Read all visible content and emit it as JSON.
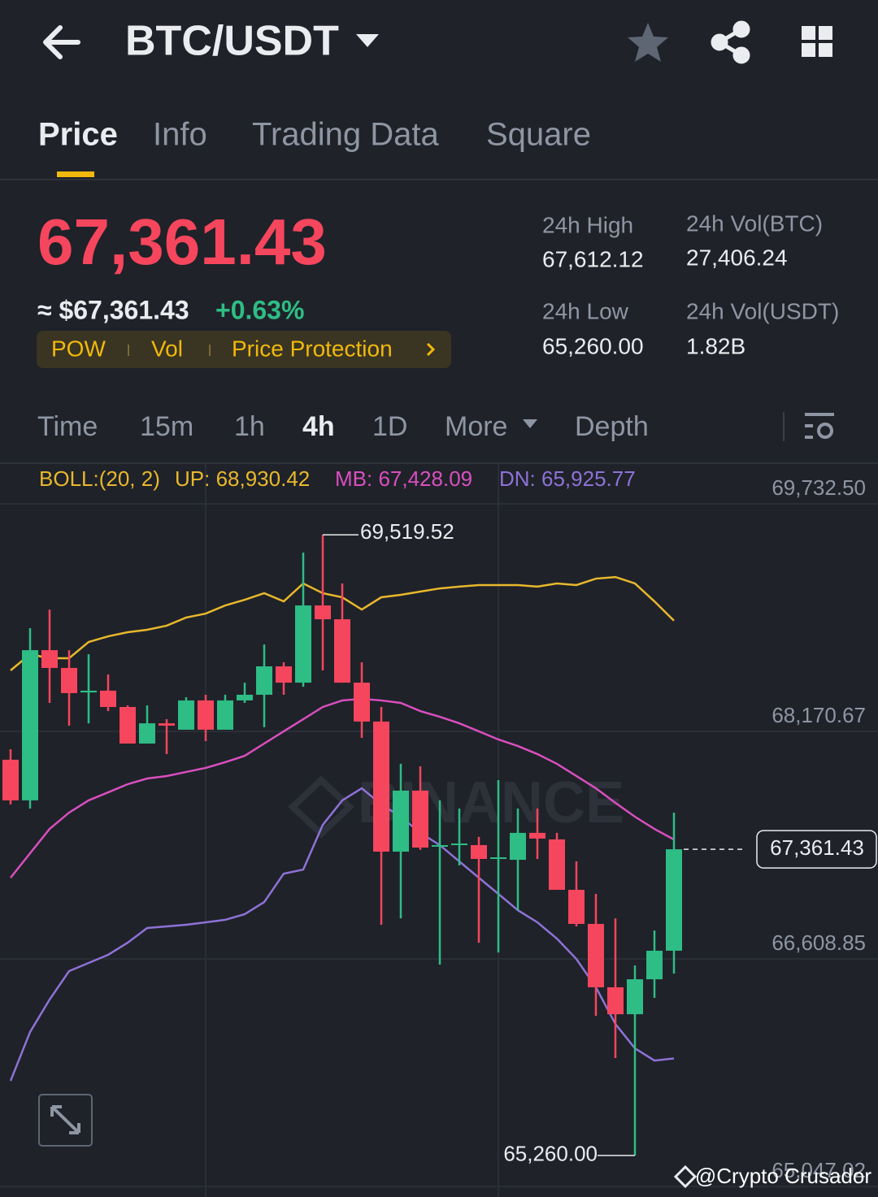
{
  "header": {
    "title": "BTC/USDT"
  },
  "tabs": [
    "Price",
    "Info",
    "Trading Data",
    "Square"
  ],
  "ticker": {
    "price": "67,361.43",
    "approx": "≈ $67,361.43",
    "change": "+0.63%",
    "tags": [
      "POW",
      "Vol",
      "Price Protection"
    ],
    "stats": [
      {
        "label": "24h High",
        "value": "67,612.12"
      },
      {
        "label": "24h Vol(BTC)",
        "value": "27,406.24"
      },
      {
        "label": "24h Low",
        "value": "65,260.00"
      },
      {
        "label": "24h Vol(USDT)",
        "value": "1.82B"
      }
    ]
  },
  "intervals": [
    "Time",
    "15m",
    "1h",
    "4h",
    "1D",
    "More",
    "Depth"
  ],
  "chart_data": {
    "type": "candlestick",
    "indicator": "BOLL:(20, 2)",
    "watermark": "BINANCE",
    "up_color": "#2ebd85",
    "down_color": "#f6465d",
    "ylim": [
      65047.02,
      69732.5
    ],
    "yticks": [
      {
        "value": 69732.5,
        "label": "69,732.50"
      },
      {
        "value": 68170.67,
        "label": "68,170.67"
      },
      {
        "value": 66608.85,
        "label": "66,608.85"
      },
      {
        "value": 65047.02,
        "label": "65,047.02"
      }
    ],
    "grid": true,
    "candles": {
      "open": [
        67976,
        67697,
        68728,
        68606,
        68438,
        68450,
        68338,
        68087,
        68226,
        68182,
        68383,
        68182,
        68383,
        68422,
        68617,
        68505,
        69035,
        68940,
        68505,
        68238,
        67345,
        67764,
        67379,
        67390,
        67390,
        67295,
        67289,
        67474,
        67429,
        67083,
        66849,
        66414,
        66229,
        66469,
        66665
      ],
      "high": [
        68048,
        68879,
        69007,
        68728,
        68700,
        68561,
        68349,
        68349,
        68254,
        68405,
        68422,
        68422,
        68505,
        68767,
        68645,
        69398,
        69519.52,
        69186,
        68645,
        68338,
        67948,
        67931,
        67697,
        67641,
        67446,
        67836,
        67641,
        67641,
        67474,
        67278,
        67055,
        66887,
        66564,
        66804,
        67613
      ],
      "low": [
        67669,
        67641,
        68366,
        68210,
        68226,
        68310,
        68087,
        68087,
        68015,
        68182,
        68104,
        68182,
        68366,
        68199,
        68422,
        68477,
        68589,
        68505,
        68126,
        66843,
        66887,
        67357,
        66570,
        67250,
        66720,
        66653,
        66943,
        67295,
        67083,
        66832,
        66218,
        65928,
        65260.0,
        66341,
        66508
      ],
      "close": [
        67697,
        68728,
        68606,
        68433,
        68450,
        68338,
        68087,
        68226,
        68210,
        68383,
        68182,
        68383,
        68422,
        68617,
        68505,
        69035,
        68940,
        68505,
        68238,
        67345,
        67764,
        67373,
        67390,
        67401,
        67295,
        67306,
        67474,
        67435,
        67083,
        66849,
        66414,
        66229,
        66469,
        66665,
        67361.43
      ]
    },
    "series": [
      {
        "label": "UP: 68,930.42",
        "color": "#e8b82c",
        "values": [
          68589,
          68700,
          68673,
          68673,
          68784,
          68823,
          68851,
          68868,
          68896,
          68952,
          68979,
          69035,
          69074,
          69119,
          69063,
          69186,
          69119,
          69091,
          69007,
          69091,
          69108,
          69130,
          69152,
          69164,
          69175,
          69175,
          69175,
          69164,
          69186,
          69175,
          69219,
          69230,
          69186,
          69063,
          68930.42
        ]
      },
      {
        "label": "MB: 67,428.09",
        "color": "#d94fbf",
        "values": [
          67166,
          67334,
          67501,
          67613,
          67697,
          67752,
          67808,
          67847,
          67864,
          67892,
          67920,
          67959,
          68003,
          68087,
          68171,
          68254,
          68338,
          68383,
          68394,
          68383,
          68366,
          68310,
          68271,
          68226,
          68171,
          68115,
          68070,
          68015,
          67948,
          67864,
          67780,
          67680,
          67585,
          67501,
          67428.09
        ]
      },
      {
        "label": "DN: 65,925.77",
        "color": "#8e72d6",
        "values": [
          65772,
          66107,
          66330,
          66525,
          66581,
          66637,
          66720,
          66821,
          66832,
          66843,
          66860,
          66877,
          66916,
          66999,
          67194,
          67222,
          67529,
          67697,
          67780,
          67669,
          67585,
          67474,
          67390,
          67278,
          67166,
          67055,
          66943,
          66860,
          66748,
          66608,
          66414,
          66162,
          65995,
          65911,
          65925.77
        ]
      }
    ],
    "high_marker": {
      "value": 69519.52,
      "label": "69,519.52"
    },
    "low_marker": {
      "value": 65260.0,
      "label": "65,260.00"
    },
    "last_price": {
      "value": 67361.43,
      "label": "67,361.43"
    }
  },
  "credit": "@Crypto Crusador"
}
